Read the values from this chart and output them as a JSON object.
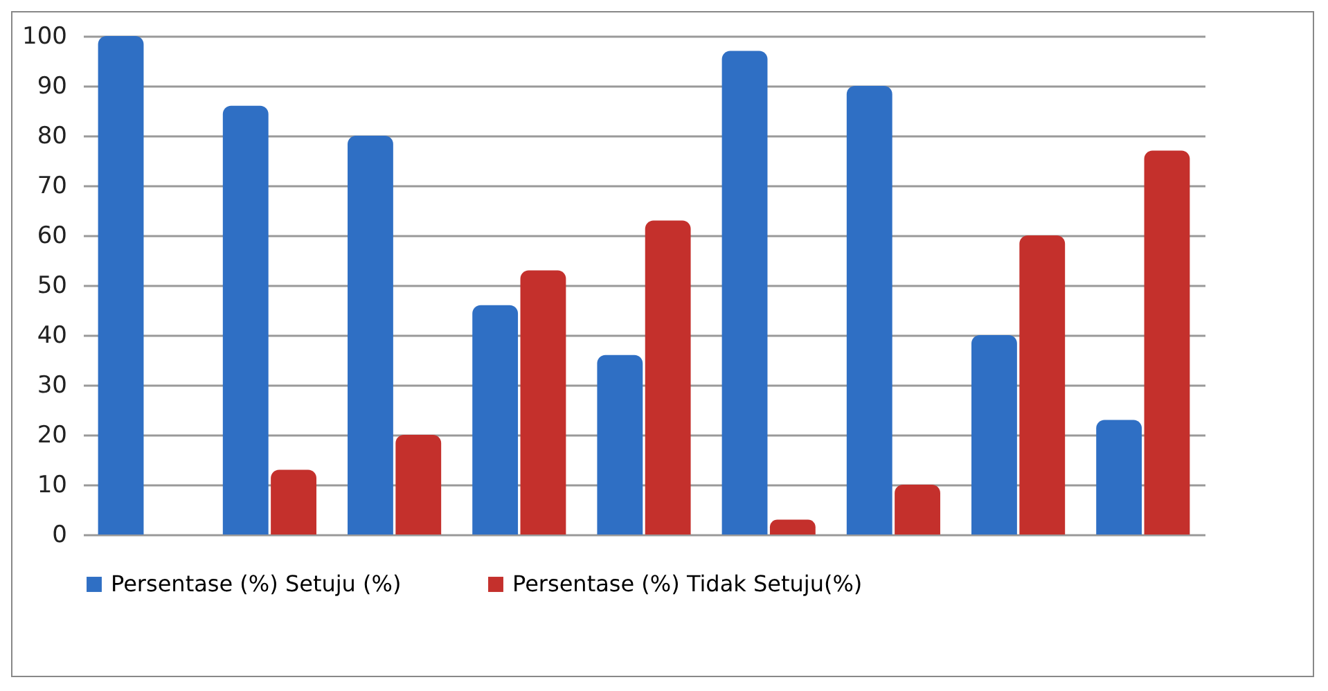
{
  "chart_data": {
    "type": "bar",
    "categories": [
      null,
      null,
      null,
      null,
      null,
      null,
      null,
      null,
      null
    ],
    "series": [
      {
        "name": "Persentase (%) Setuju (%)",
        "color": "#2f6fc4",
        "values": [
          100,
          86,
          80,
          46,
          36,
          97,
          90,
          40,
          23
        ]
      },
      {
        "name": "Persentase (%) Tidak Setuju(%)",
        "color": "#c4302c",
        "values": [
          0,
          13,
          20,
          53,
          63,
          3,
          10,
          60,
          77
        ]
      }
    ],
    "ylim": [
      0,
      100
    ],
    "yticks": [
      0,
      10,
      20,
      30,
      40,
      50,
      60,
      70,
      80,
      90,
      100
    ],
    "grid": "y",
    "legend": "bottom",
    "tick_labels": "y"
  }
}
